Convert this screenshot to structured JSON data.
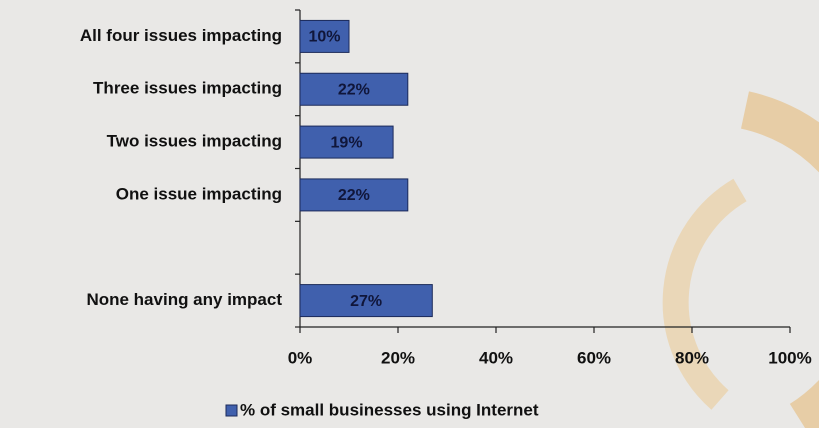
{
  "chart_data": {
    "type": "bar",
    "orientation": "horizontal",
    "categories": [
      "All four issues impacting",
      "Three issues impacting",
      "Two issues impacting",
      "One issue impacting",
      null,
      "None having any impact"
    ],
    "series": [
      {
        "name": "% of small businesses using Internet",
        "color": "#4060ad",
        "values": [
          10,
          22,
          19,
          22,
          null,
          27
        ],
        "value_labels": [
          "10%",
          "22%",
          "19%",
          "22%",
          null,
          "27%"
        ]
      }
    ],
    "xlim": [
      0,
      100
    ],
    "xticks": [
      {
        "value": 0,
        "label": "0%"
      },
      {
        "value": 20,
        "label": "20%"
      },
      {
        "value": 40,
        "label": "40%"
      },
      {
        "value": 60,
        "label": "60%"
      },
      {
        "value": 80,
        "label": "80%"
      },
      {
        "value": 100,
        "label": "100%"
      }
    ],
    "legend": "bottom"
  }
}
